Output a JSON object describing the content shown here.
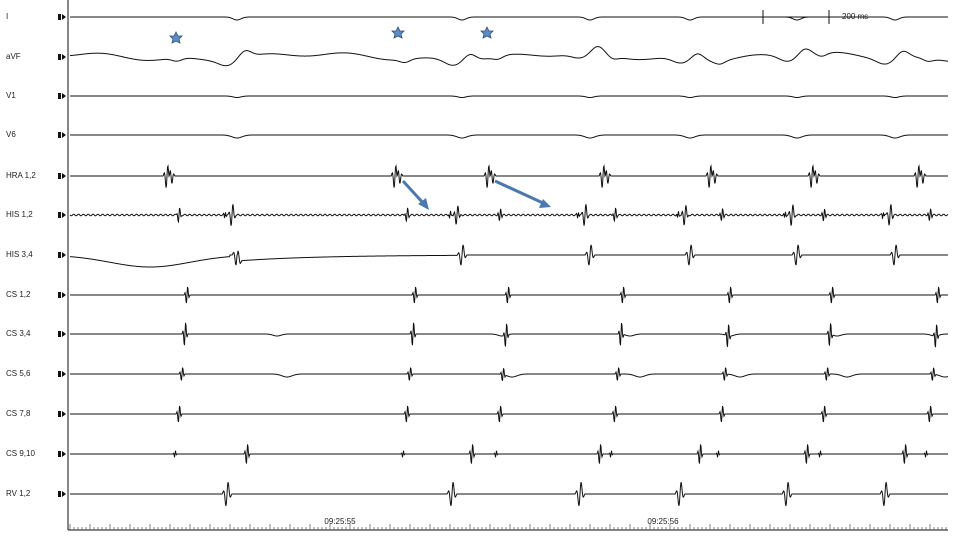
{
  "channels": [
    "I",
    "aVF",
    "V1",
    "V6",
    "HRA 1,2",
    "HIS 1,2",
    "HIS 3,4",
    "CS 1,2",
    "CS 3,4",
    "CS 5,6",
    "CS 7,8",
    "CS 9,10",
    "RV 1,2"
  ],
  "scale_bar": "200 ms",
  "timestamps": [
    "09:25:55",
    "09:25:56"
  ]
}
